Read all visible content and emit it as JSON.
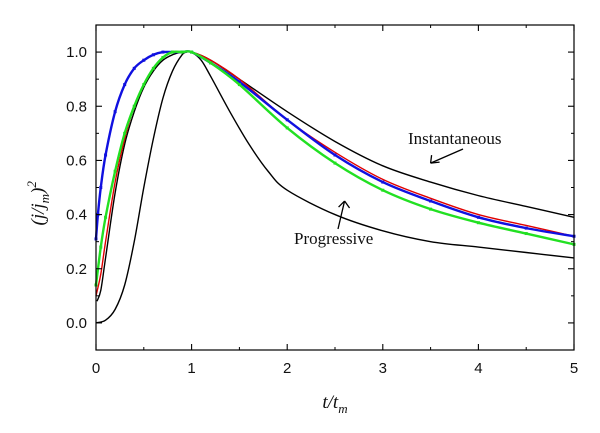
{
  "chart_data": {
    "type": "line",
    "xlabel": "t/t_m",
    "ylabel": "(j/j_m)^2",
    "xlim": [
      0,
      5
    ],
    "ylim": [
      -0.1,
      1.1
    ],
    "x_ticks": [
      0,
      1,
      2,
      3,
      4,
      5
    ],
    "x_tick_labels": [
      "0",
      "1",
      "2",
      "3",
      "4",
      "5"
    ],
    "y_ticks": [
      0.0,
      0.2,
      0.4,
      0.6,
      0.8,
      1.0
    ],
    "y_tick_labels": [
      "0.0",
      "0.2",
      "0.4",
      "0.6",
      "0.8",
      "1.0"
    ],
    "grid": false,
    "annotations": [
      {
        "text": "Instantaneous",
        "point": [
          3.5,
          0.59
        ]
      },
      {
        "text": "Progressive",
        "point": [
          2.6,
          0.45
        ]
      }
    ],
    "series": [
      {
        "color": "#000000",
        "x": [
          0.01,
          0.05,
          0.1,
          0.2,
          0.3,
          0.4,
          0.5,
          0.6,
          0.7,
          0.8,
          0.9,
          1.0,
          1.2,
          1.5,
          2.0,
          2.5,
          3.0,
          3.5,
          4.0,
          4.5,
          5.0
        ],
        "y": [
          0.08,
          0.12,
          0.24,
          0.48,
          0.66,
          0.78,
          0.87,
          0.93,
          0.97,
          0.99,
          1.0,
          1.0,
          0.97,
          0.9,
          0.78,
          0.67,
          0.58,
          0.52,
          0.47,
          0.43,
          0.39
        ]
      },
      {
        "color": "#000000",
        "x": [
          0.0,
          0.1,
          0.2,
          0.3,
          0.4,
          0.5,
          0.6,
          0.7,
          0.8,
          0.9,
          0.95,
          1.0,
          1.1,
          1.2,
          1.4,
          1.6,
          1.8,
          2.0,
          2.5,
          3.0,
          3.5,
          4.0,
          4.5,
          5.0
        ],
        "y": [
          0.0,
          0.01,
          0.05,
          0.14,
          0.3,
          0.5,
          0.68,
          0.83,
          0.93,
          0.99,
          1.0,
          1.0,
          0.97,
          0.91,
          0.78,
          0.66,
          0.56,
          0.49,
          0.4,
          0.34,
          0.3,
          0.28,
          0.26,
          0.24
        ]
      },
      {
        "color": "#e00000",
        "x": [
          0.0,
          0.05,
          0.1,
          0.2,
          0.3,
          0.4,
          0.5,
          0.6,
          0.7,
          0.8,
          0.9,
          1.0,
          1.2,
          1.5,
          2.0,
          2.5,
          3.0,
          3.5,
          4.0,
          4.5,
          5.0
        ],
        "y": [
          0.1,
          0.18,
          0.3,
          0.52,
          0.68,
          0.8,
          0.88,
          0.94,
          0.98,
          1.0,
          1.0,
          1.0,
          0.97,
          0.9,
          0.75,
          0.63,
          0.53,
          0.46,
          0.4,
          0.36,
          0.32
        ]
      },
      {
        "color": "#1010e0",
        "x": [
          0.0,
          0.02,
          0.05,
          0.1,
          0.2,
          0.3,
          0.4,
          0.5,
          0.6,
          0.7,
          0.8,
          0.9,
          1.0,
          1.2,
          1.5,
          2.0,
          2.5,
          3.0,
          3.5,
          4.0,
          4.5,
          5.0
        ],
        "y": [
          0.31,
          0.4,
          0.5,
          0.62,
          0.78,
          0.88,
          0.94,
          0.97,
          0.99,
          1.0,
          1.0,
          1.0,
          1.0,
          0.96,
          0.89,
          0.75,
          0.62,
          0.52,
          0.45,
          0.39,
          0.35,
          0.32
        ]
      },
      {
        "color": "#22e022",
        "x": [
          0.0,
          0.05,
          0.1,
          0.2,
          0.3,
          0.4,
          0.5,
          0.6,
          0.7,
          0.8,
          0.9,
          1.0,
          1.2,
          1.5,
          2.0,
          2.5,
          3.0,
          3.5,
          4.0,
          4.5,
          5.0
        ],
        "y": [
          0.14,
          0.28,
          0.39,
          0.56,
          0.7,
          0.8,
          0.88,
          0.94,
          0.98,
          1.0,
          1.0,
          1.0,
          0.96,
          0.88,
          0.72,
          0.59,
          0.49,
          0.42,
          0.37,
          0.33,
          0.29
        ]
      }
    ]
  }
}
